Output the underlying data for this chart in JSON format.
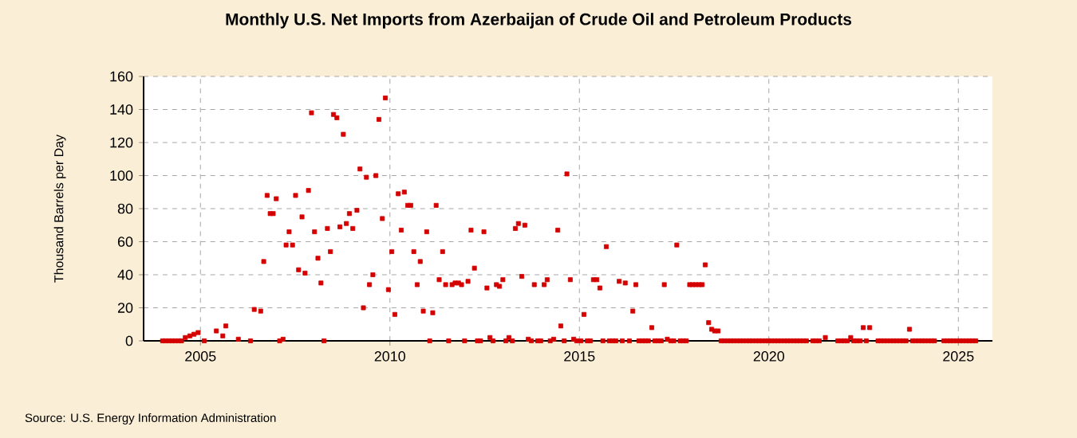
{
  "chart_data": {
    "type": "scatter",
    "title": "Monthly U.S. Net Imports from Azerbaijan of Crude Oil and Petroleum Products",
    "ylabel": "Thousand Barrels per Day",
    "annotations": [
      "Source: U.S. Energy Information Administration"
    ],
    "series": [
      {
        "color": "#d40000",
        "x": [
          2004.0,
          2004.08,
          2004.17,
          2004.25,
          2004.33,
          2004.42,
          2004.5,
          2004.6,
          2004.72,
          2004.83,
          2004.94,
          2005.1,
          2005.42,
          2005.59,
          2005.67,
          2006.0,
          2006.32,
          2006.42,
          2006.59,
          2006.67,
          2006.76,
          2006.84,
          2006.92,
          2007.0,
          2007.09,
          2007.18,
          2007.26,
          2007.34,
          2007.43,
          2007.51,
          2007.59,
          2007.68,
          2007.76,
          2007.85,
          2007.93,
          2008.01,
          2008.1,
          2008.18,
          2008.26,
          2008.35,
          2008.43,
          2008.51,
          2008.6,
          2008.68,
          2008.77,
          2008.85,
          2008.93,
          2009.02,
          2009.13,
          2009.21,
          2009.3,
          2009.38,
          2009.46,
          2009.55,
          2009.63,
          2009.71,
          2009.8,
          2009.88,
          2009.96,
          2010.05,
          2010.13,
          2010.22,
          2010.3,
          2010.38,
          2010.47,
          2010.55,
          2010.63,
          2010.72,
          2010.8,
          2010.88,
          2010.97,
          2011.05,
          2011.13,
          2011.22,
          2011.3,
          2011.39,
          2011.47,
          2011.55,
          2011.64,
          2011.72,
          2011.81,
          2011.89,
          2011.97,
          2012.06,
          2012.14,
          2012.23,
          2012.31,
          2012.39,
          2012.48,
          2012.56,
          2012.64,
          2012.72,
          2012.81,
          2012.89,
          2012.98,
          2013.06,
          2013.14,
          2013.23,
          2013.31,
          2013.39,
          2013.48,
          2013.56,
          2013.65,
          2013.73,
          2013.81,
          2013.9,
          2013.98,
          2014.07,
          2014.15,
          2014.23,
          2014.32,
          2014.43,
          2014.51,
          2014.6,
          2014.67,
          2014.76,
          2014.85,
          2014.93,
          2015.04,
          2015.12,
          2015.21,
          2015.29,
          2015.37,
          2015.46,
          2015.54,
          2015.62,
          2015.71,
          2015.79,
          2015.88,
          2015.96,
          2016.05,
          2016.13,
          2016.21,
          2016.32,
          2016.41,
          2016.49,
          2016.57,
          2016.66,
          2016.74,
          2016.82,
          2016.91,
          2016.99,
          2017.07,
          2017.16,
          2017.24,
          2017.32,
          2017.41,
          2017.49,
          2017.57,
          2017.66,
          2017.74,
          2017.82,
          2017.91,
          2017.99,
          2018.07,
          2018.16,
          2018.24,
          2018.32,
          2018.41,
          2018.49,
          2018.57,
          2018.66,
          2018.74,
          2018.82,
          2018.91,
          2018.99,
          2019.07,
          2019.16,
          2019.24,
          2019.32,
          2019.41,
          2019.49,
          2019.57,
          2019.66,
          2019.74,
          2019.82,
          2019.91,
          2019.99,
          2020.07,
          2020.16,
          2020.24,
          2020.32,
          2020.41,
          2020.49,
          2020.57,
          2020.66,
          2020.74,
          2020.82,
          2020.91,
          2020.99,
          2021.16,
          2021.24,
          2021.33,
          2021.49,
          2021.82,
          2021.91,
          2021.99,
          2022.07,
          2022.16,
          2022.24,
          2022.32,
          2022.41,
          2022.49,
          2022.57,
          2022.66,
          2022.88,
          2022.96,
          2023.04,
          2023.12,
          2023.21,
          2023.29,
          2023.37,
          2023.46,
          2023.54,
          2023.62,
          2023.71,
          2023.79,
          2023.87,
          2023.96,
          2024.04,
          2024.12,
          2024.21,
          2024.29,
          2024.37,
          2024.62,
          2024.71,
          2024.79,
          2024.87,
          2024.96,
          2025.04,
          2025.12,
          2025.21,
          2025.29,
          2025.37,
          2025.46
        ],
        "values": [
          0,
          0,
          0,
          0,
          0,
          0,
          0,
          2,
          3,
          4,
          5,
          0,
          6,
          3,
          9,
          1,
          0,
          19,
          18,
          48,
          88,
          77,
          77,
          86,
          0,
          1,
          58,
          66,
          58,
          88,
          43,
          75,
          41,
          91,
          138,
          66,
          50,
          35,
          0,
          68,
          54,
          137,
          135,
          69,
          125,
          71,
          77,
          68,
          79,
          104,
          20,
          99,
          34,
          40,
          100,
          134,
          74,
          147,
          31,
          54,
          16,
          89,
          67,
          90,
          82,
          82,
          54,
          34,
          48,
          18,
          66,
          0,
          17,
          82,
          37,
          54,
          34,
          0,
          34,
          35,
          35,
          34,
          0,
          36,
          67,
          44,
          0,
          0,
          66,
          32,
          2,
          0,
          34,
          33,
          37,
          0,
          2,
          0,
          68,
          71,
          39,
          70,
          1,
          0,
          34,
          0,
          0,
          34,
          37,
          0,
          1,
          67,
          9,
          0,
          101,
          37,
          1,
          0,
          0,
          16,
          0,
          0,
          37,
          37,
          32,
          0,
          57,
          0,
          0,
          0,
          36,
          0,
          35,
          0,
          18,
          34,
          0,
          0,
          0,
          0,
          8,
          0,
          0,
          0,
          34,
          1,
          0,
          0,
          58,
          0,
          0,
          0,
          34,
          34,
          34,
          34,
          34,
          46,
          11,
          7,
          6,
          6,
          0,
          0,
          0,
          0,
          0,
          0,
          0,
          0,
          0,
          0,
          0,
          0,
          0,
          0,
          0,
          0,
          0,
          0,
          0,
          0,
          0,
          0,
          0,
          0,
          0,
          0,
          0,
          0,
          0,
          0,
          0,
          2,
          0,
          0,
          0,
          0,
          2,
          0,
          0,
          0,
          8,
          0,
          8,
          0,
          0,
          0,
          0,
          0,
          0,
          0,
          0,
          0,
          0,
          7,
          0,
          0,
          0,
          0,
          0,
          0,
          0,
          0,
          0,
          0,
          0,
          0,
          0,
          0,
          0,
          0,
          0,
          0,
          0
        ]
      }
    ],
    "xlim": [
      2003.5,
      2025.9
    ],
    "ylim": [
      0,
      160
    ],
    "xticks": [
      2005,
      2010,
      2015,
      2020,
      2025
    ],
    "yticks": [
      0,
      20,
      40,
      60,
      80,
      100,
      120,
      140,
      160
    ],
    "grid": true,
    "marker": "square"
  }
}
